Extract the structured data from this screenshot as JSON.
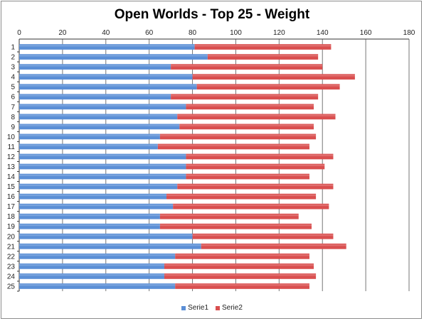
{
  "chart_data": {
    "type": "bar",
    "orientation": "horizontal",
    "stacked": true,
    "title": "Open Worlds - Top 25 - Weight",
    "xlabel": "",
    "ylabel": "",
    "xlim": [
      0,
      180
    ],
    "xticks": [
      0,
      20,
      40,
      60,
      80,
      100,
      120,
      140,
      160,
      180
    ],
    "x_axis_position": "top",
    "grid": "vertical major gridlines",
    "legend_position": "bottom",
    "categories": [
      "1",
      "2",
      "3",
      "4",
      "5",
      "6",
      "7",
      "8",
      "9",
      "10",
      "11",
      "12",
      "13",
      "14",
      "15",
      "16",
      "17",
      "18",
      "19",
      "20",
      "21",
      "22",
      "23",
      "24",
      "25"
    ],
    "series": [
      {
        "name": "Serie1",
        "color": "#5b8fd6",
        "values": [
          81,
          87,
          70,
          80,
          82,
          70,
          77,
          73,
          74,
          65,
          64,
          77,
          77,
          77,
          73,
          68,
          71,
          65,
          65,
          80,
          84,
          72,
          67,
          67,
          72
        ]
      },
      {
        "name": "Serie2",
        "color": "#d94f4f",
        "values": [
          63,
          51,
          70,
          75,
          66,
          68,
          59,
          73,
          62,
          72,
          70,
          68,
          64,
          57,
          72,
          69,
          72,
          64,
          70,
          65,
          67,
          62,
          69,
          70,
          62
        ]
      }
    ]
  }
}
